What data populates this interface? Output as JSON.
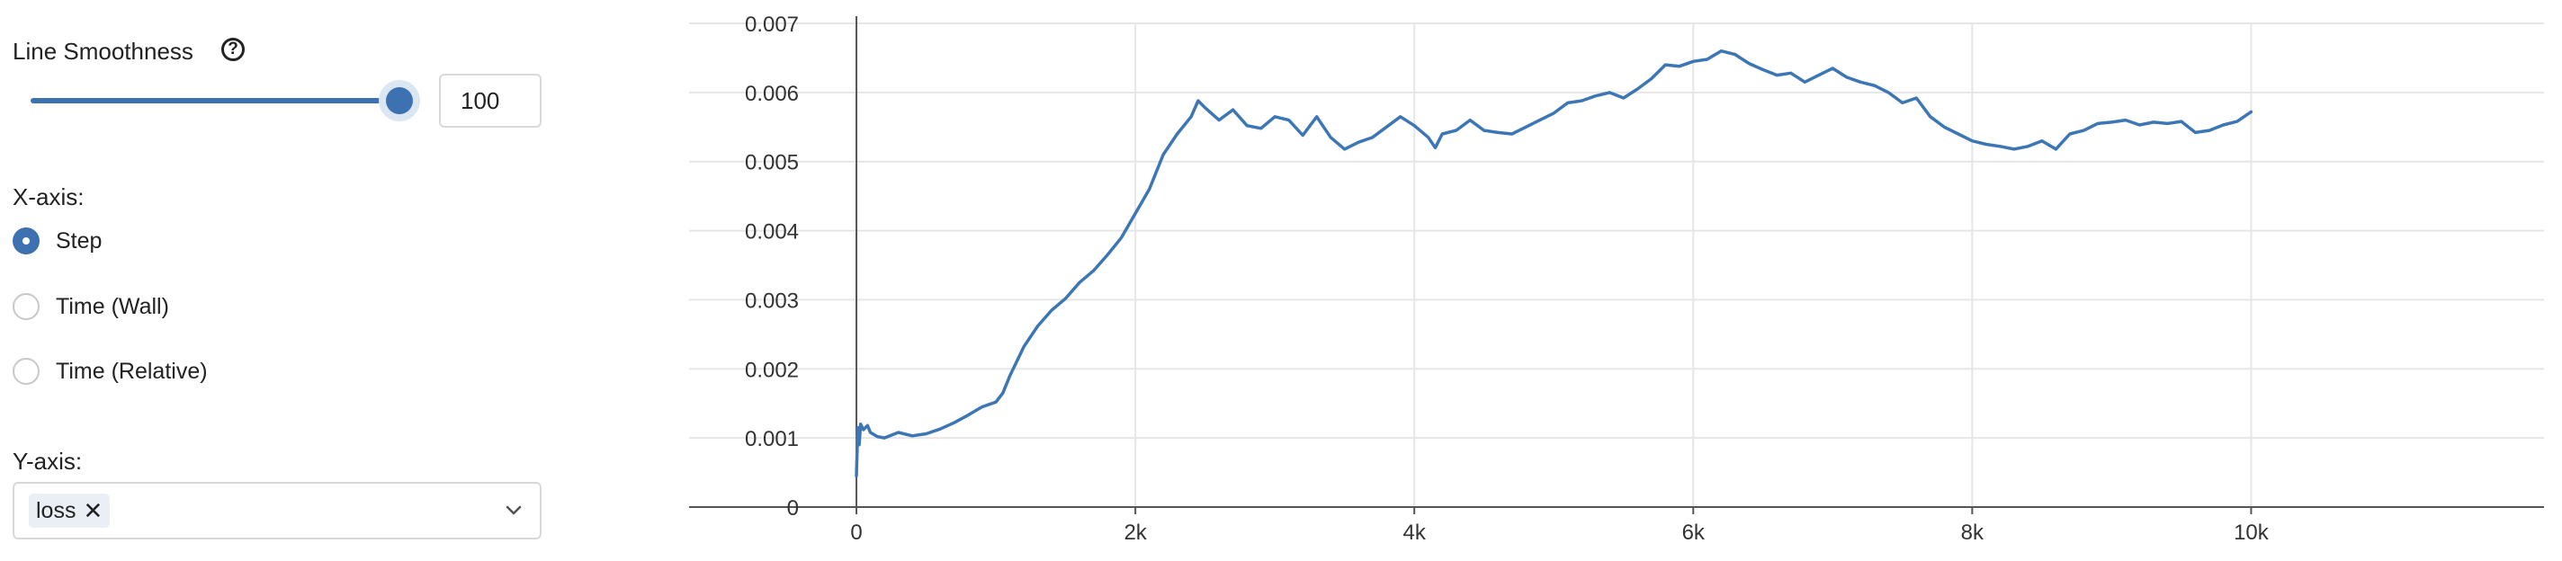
{
  "controls": {
    "smoothing": {
      "label": "Line Smoothness",
      "help_icon": "question-circle-icon",
      "value": "100",
      "slider_fraction": 1.0
    },
    "xaxis": {
      "label": "X-axis:",
      "options": [
        {
          "label": "Step",
          "checked": true
        },
        {
          "label": "Time (Wall)",
          "checked": false
        },
        {
          "label": "Time (Relative)",
          "checked": false
        }
      ]
    },
    "yaxis": {
      "label": "Y-axis:",
      "chip": "loss",
      "chip_remove_icon": "close-icon",
      "dropdown_icon": "chevron-down-icon"
    }
  },
  "colors": {
    "accent": "#3d71b0",
    "line": "#3d76b5",
    "slider_rest": "#e6e6e6",
    "thumb_halo": "#dbe6f3",
    "chip_bg": "#eaeff5",
    "grid": "#e6e6e6",
    "axis": "#555555",
    "tick_text": "#333333"
  },
  "chart_data": {
    "type": "line",
    "title": "",
    "xlabel": "",
    "ylabel": "",
    "xlim": [
      -1200,
      12100
    ],
    "ylim": [
      0,
      0.007
    ],
    "grid": true,
    "x_ticks": [
      0,
      2000,
      4000,
      6000,
      8000,
      10000
    ],
    "x_tick_labels": [
      "0",
      "2k",
      "4k",
      "6k",
      "8k",
      "10k"
    ],
    "y_ticks": [
      0,
      0.001,
      0.002,
      0.003,
      0.004,
      0.005,
      0.006,
      0.007
    ],
    "y_tick_labels": [
      "0",
      "0.001",
      "0.002",
      "0.003",
      "0.004",
      "0.005",
      "0.006",
      "0.007"
    ],
    "series": [
      {
        "x": [
          0,
          10,
          20,
          30,
          50,
          80,
          100,
          150,
          200,
          300,
          400,
          500,
          600,
          700,
          800,
          900,
          1000,
          1050,
          1100,
          1200,
          1300,
          1400,
          1500,
          1600,
          1700,
          1800,
          1900,
          2000,
          2100,
          2200,
          2300,
          2400,
          2450,
          2500,
          2600,
          2700,
          2800,
          2900,
          3000,
          3100,
          3200,
          3300,
          3400,
          3500,
          3600,
          3700,
          3800,
          3900,
          4000,
          4100,
          4150,
          4200,
          4300,
          4400,
          4500,
          4600,
          4700,
          4800,
          4900,
          5000,
          5100,
          5200,
          5300,
          5400,
          5500,
          5600,
          5700,
          5800,
          5900,
          6000,
          6100,
          6200,
          6300,
          6400,
          6500,
          6600,
          6700,
          6800,
          6900,
          7000,
          7100,
          7200,
          7300,
          7400,
          7500,
          7600,
          7700,
          7800,
          7900,
          8000,
          8100,
          8200,
          8300,
          8400,
          8500,
          8600,
          8700,
          8800,
          8900,
          9000,
          9100,
          9200,
          9300,
          9400,
          9500,
          9600,
          9700,
          9800,
          9900,
          10000
        ],
        "y": [
          0.00045,
          0.00115,
          0.0009,
          0.0012,
          0.00112,
          0.00118,
          0.00108,
          0.00102,
          0.001,
          0.00108,
          0.00103,
          0.00106,
          0.00113,
          0.00122,
          0.00133,
          0.00145,
          0.00152,
          0.00165,
          0.0019,
          0.00232,
          0.00262,
          0.00285,
          0.00302,
          0.00325,
          0.00342,
          0.00365,
          0.0039,
          0.00425,
          0.0046,
          0.0051,
          0.0054,
          0.00565,
          0.00588,
          0.00578,
          0.0056,
          0.00575,
          0.00552,
          0.00548,
          0.00565,
          0.0056,
          0.00538,
          0.00565,
          0.00535,
          0.00518,
          0.00528,
          0.00535,
          0.0055,
          0.00565,
          0.00552,
          0.00535,
          0.0052,
          0.0054,
          0.00545,
          0.0056,
          0.00545,
          0.00542,
          0.0054,
          0.0055,
          0.0056,
          0.0057,
          0.00585,
          0.00588,
          0.00595,
          0.006,
          0.00592,
          0.00605,
          0.0062,
          0.0064,
          0.00638,
          0.00645,
          0.00648,
          0.0066,
          0.00655,
          0.00642,
          0.00633,
          0.00625,
          0.00628,
          0.00615,
          0.00625,
          0.00635,
          0.00622,
          0.00615,
          0.0061,
          0.006,
          0.00585,
          0.00592,
          0.00565,
          0.0055,
          0.0054,
          0.0053,
          0.00525,
          0.00522,
          0.00518,
          0.00522,
          0.0053,
          0.00518,
          0.0054,
          0.00545,
          0.00555,
          0.00557,
          0.0056,
          0.00553,
          0.00557,
          0.00555,
          0.00558,
          0.00542,
          0.00545,
          0.00553,
          0.00558,
          0.00572
        ]
      }
    ]
  }
}
